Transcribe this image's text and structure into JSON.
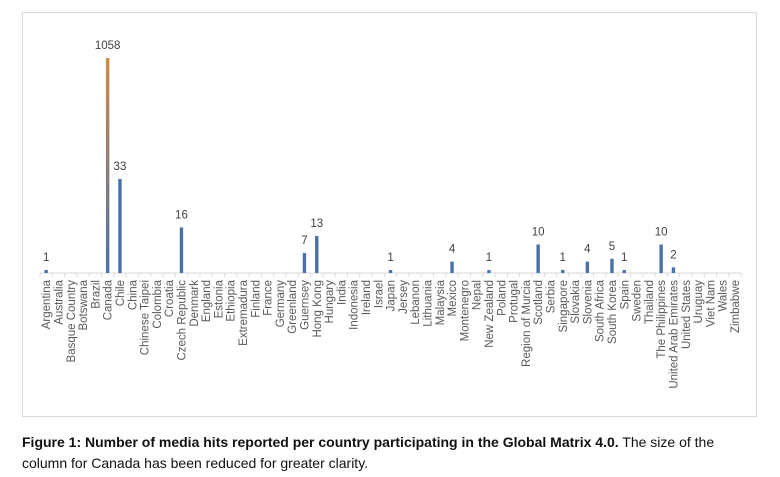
{
  "chart_data": {
    "type": "bar",
    "title": "",
    "xlabel": "",
    "ylabel": "",
    "categories": [
      "Argentina",
      "Australia",
      "Basque Country",
      "Botswana",
      "Brazil",
      "Canada",
      "Chile",
      "China",
      "Chinese Taipei",
      "Colombia",
      "Croatia",
      "Czech Republic",
      "Denmark",
      "England",
      "Estonia",
      "Ethiopia",
      "Extremadura",
      "Finland",
      "France",
      "Germany",
      "Greenland",
      "Guernsey",
      "Hong Kong",
      "Hungary",
      "India",
      "Indonesia",
      "Ireland",
      "Israel",
      "Japan",
      "Jersey",
      "Lebanon",
      "Lithuania",
      "Malaysia",
      "Mexico",
      "Montenegro",
      "Nepal",
      "New Zealand",
      "Poland",
      "Protugal",
      "Region of Murcia",
      "Scotland",
      "Serbia",
      "Singapore",
      "Slovakia",
      "Slovenia",
      "South Africa",
      "South Korea",
      "Spain",
      "Sweden",
      "Thailand",
      "The Philippines",
      "United Arab Emirates",
      "United States",
      "Uruguay",
      "Viet Nam",
      "Wales",
      "Zimbabwe"
    ],
    "values": [
      1,
      0,
      0,
      0,
      0,
      1058,
      33,
      0,
      0,
      0,
      0,
      16,
      0,
      0,
      0,
      0,
      0,
      0,
      0,
      0,
      0,
      7,
      13,
      0,
      0,
      0,
      0,
      0,
      1,
      0,
      0,
      0,
      0,
      4,
      0,
      0,
      1,
      0,
      0,
      0,
      10,
      0,
      1,
      0,
      4,
      0,
      5,
      1,
      0,
      0,
      10,
      2,
      0,
      0,
      0,
      0,
      0
    ],
    "truncated_category": "Canada",
    "grid": false,
    "legend": "none",
    "colors": {
      "bar": "#4a72a8",
      "truncated_top": "#d08a4a",
      "axis": "#d9d9d9",
      "label": "#595959"
    }
  },
  "caption": {
    "bold": "Figure 1: Number of media hits reported per country participating in the Global Matrix 4.0.",
    "normal": " The size of the column for Canada has been reduced for greater clarity."
  }
}
